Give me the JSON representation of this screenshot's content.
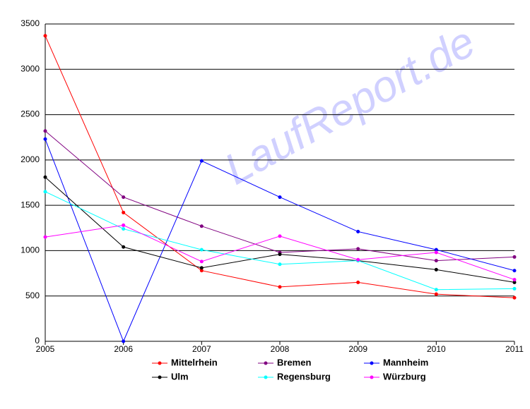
{
  "chart_data": {
    "type": "line",
    "watermark": "LaufReport.de",
    "x": [
      2005,
      2006,
      2007,
      2008,
      2009,
      2010,
      2011
    ],
    "xlim": [
      2005,
      2011
    ],
    "xticks": [
      2005,
      2006,
      2007,
      2008,
      2009,
      2010,
      2011
    ],
    "ylim": [
      0,
      3500
    ],
    "yticks": [
      0,
      500,
      1000,
      1500,
      2000,
      2500,
      3000,
      3500
    ],
    "grid": true,
    "legend": "bottom",
    "series": [
      {
        "name": "Mittelrhein",
        "color": "#ff0000",
        "values": [
          3370,
          1420,
          780,
          600,
          650,
          520,
          480
        ]
      },
      {
        "name": "Bremen",
        "color": "#800080",
        "values": [
          2320,
          1590,
          1270,
          980,
          1020,
          890,
          930
        ]
      },
      {
        "name": "Mannheim",
        "color": "#0000ff",
        "values": [
          2230,
          0,
          1990,
          1590,
          1210,
          1010,
          780
        ]
      },
      {
        "name": "Ulm",
        "color": "#000000",
        "values": [
          1810,
          1040,
          810,
          960,
          890,
          790,
          650
        ]
      },
      {
        "name": "Regensburg",
        "color": "#00ffff",
        "values": [
          1650,
          1240,
          1010,
          850,
          890,
          570,
          580
        ]
      },
      {
        "name": "Würzburg",
        "color": "#ff00ff",
        "values": [
          1150,
          1280,
          880,
          1160,
          900,
          980,
          680
        ]
      }
    ]
  }
}
